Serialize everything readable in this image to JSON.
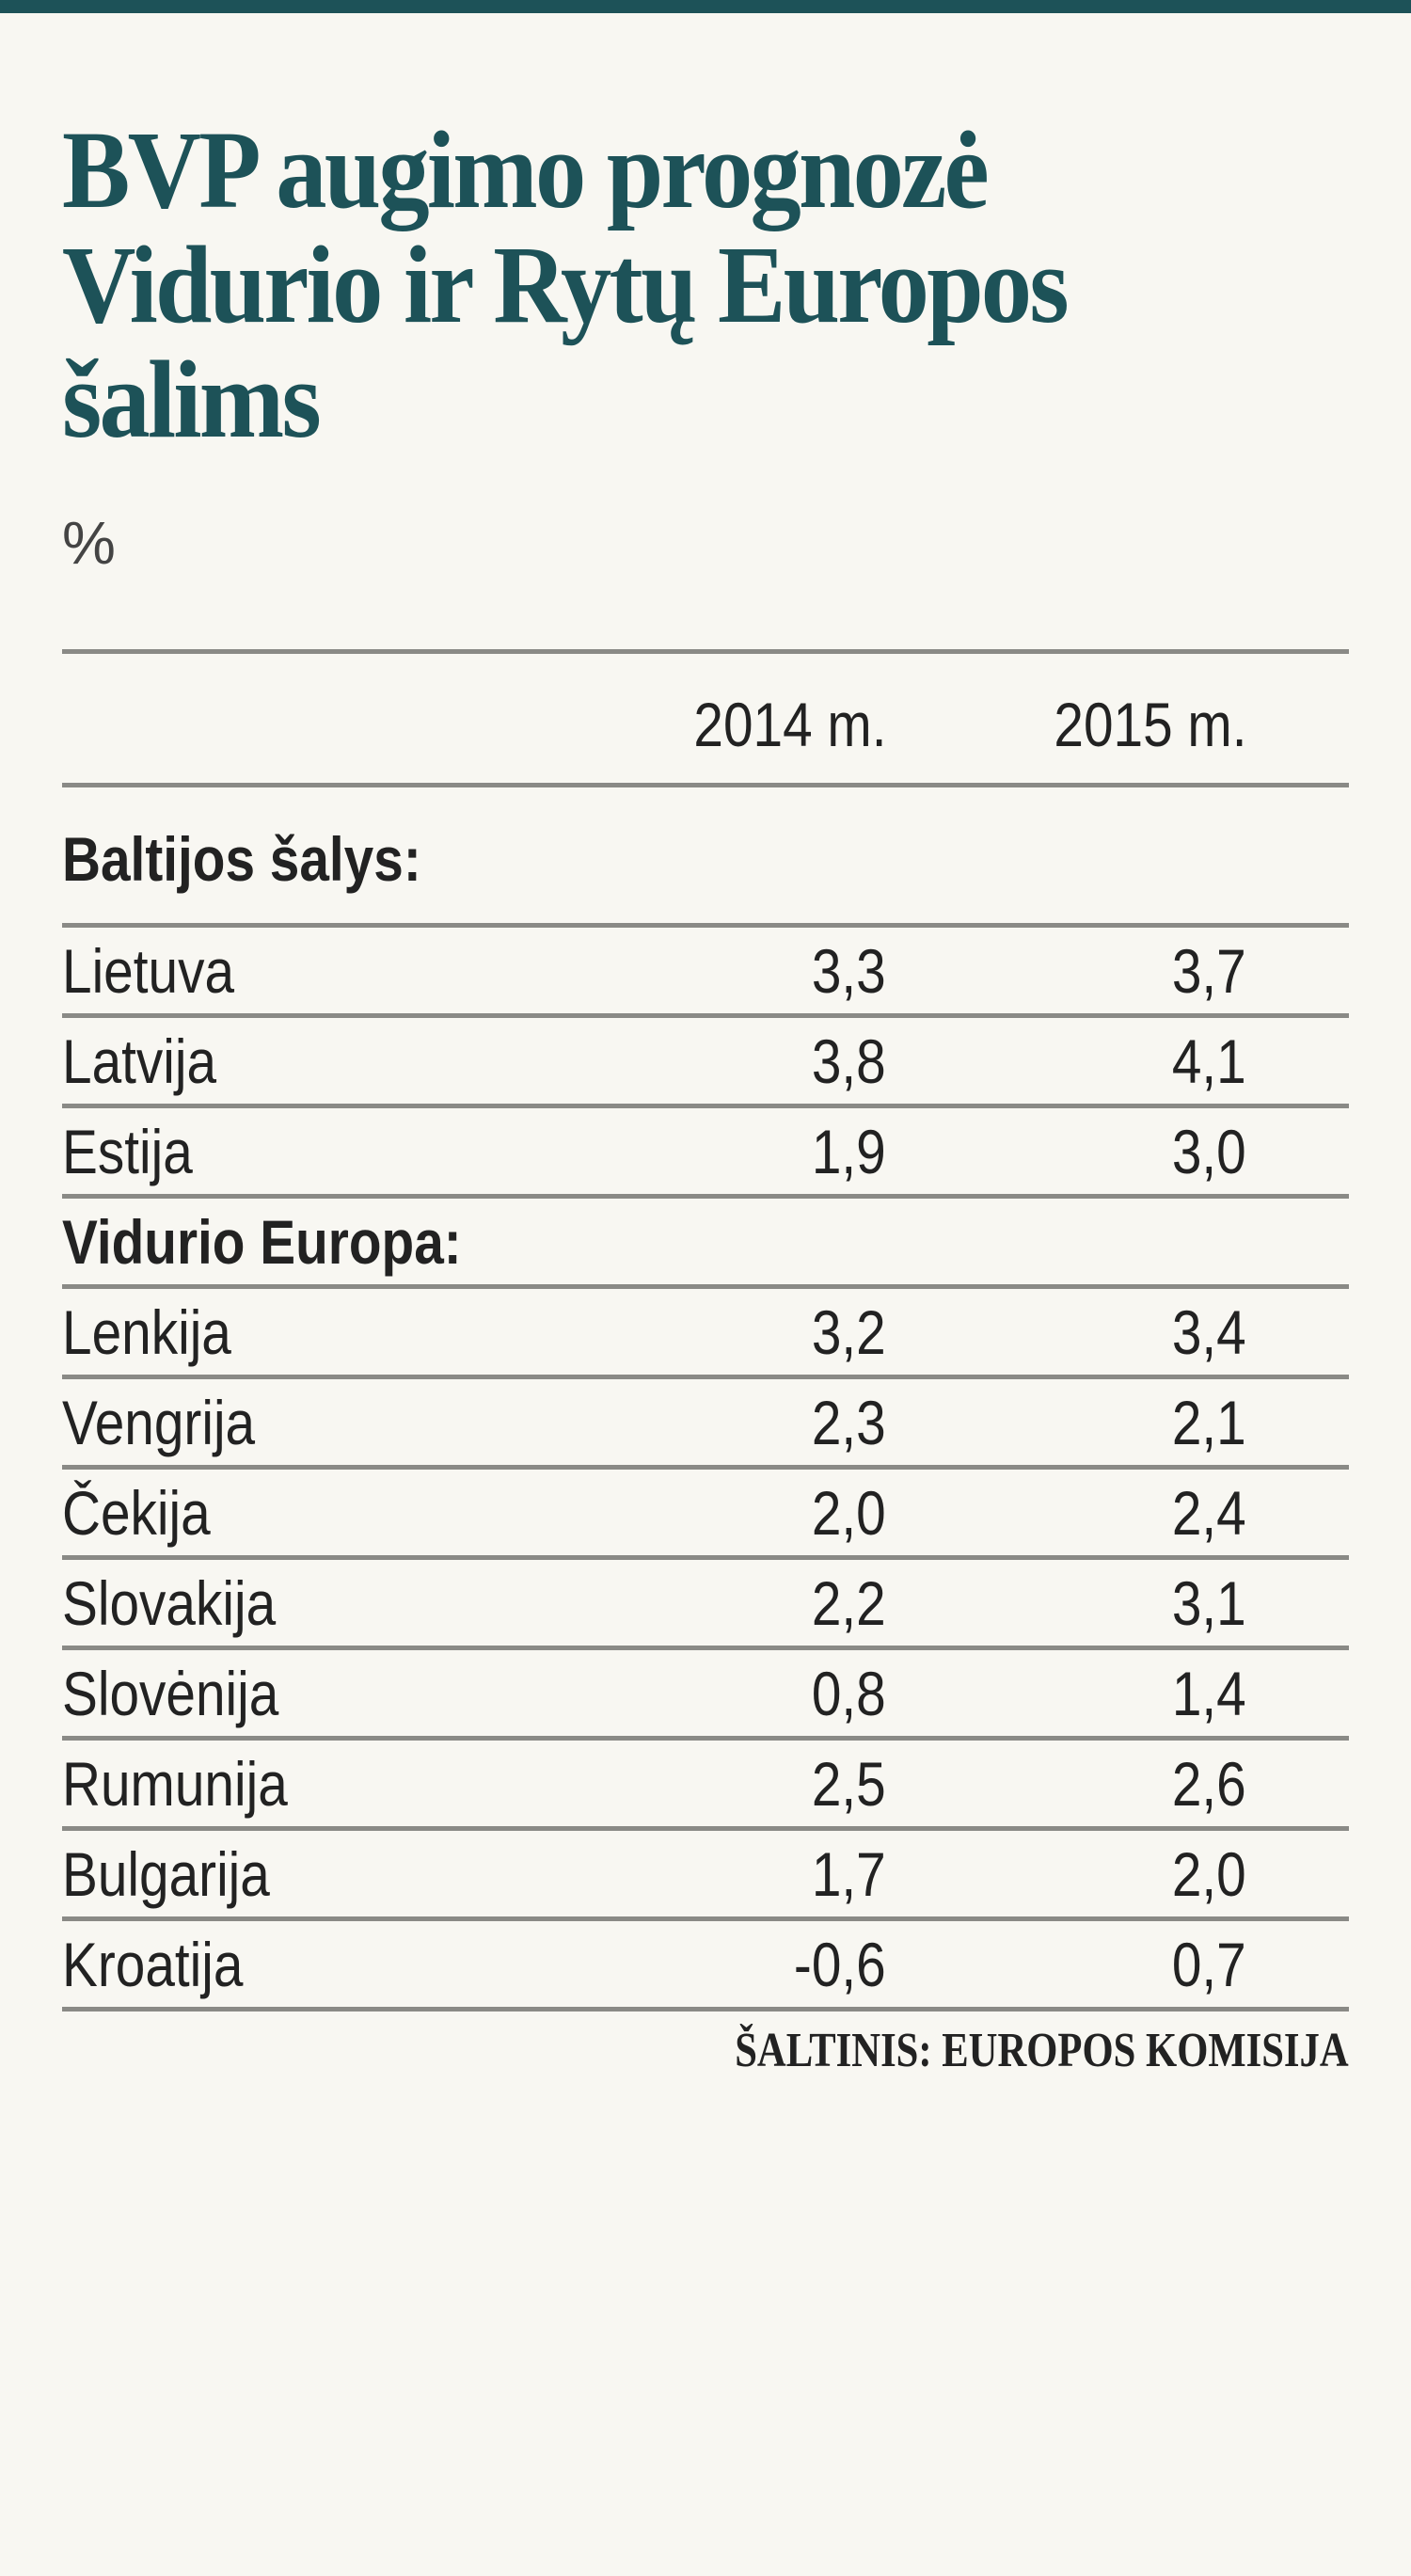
{
  "title_lines": [
    "BVP augimo prognozė",
    "Vidurio ir Rytų Europos",
    "šalims"
  ],
  "unit": "%",
  "columns": [
    "2014 m.",
    "2015 m."
  ],
  "rows": [
    {
      "label": "Baltijos šalys:",
      "group": true
    },
    {
      "label": "Lietuva",
      "v2014": "3,3",
      "v2015": "3,7"
    },
    {
      "label": "Latvija",
      "v2014": "3,8",
      "v2015": "4,1"
    },
    {
      "label": "Estija",
      "v2014": "1,9",
      "v2015": "3,0"
    },
    {
      "label": "Vidurio Europa:",
      "group": true
    },
    {
      "label": "Lenkija",
      "v2014": "3,2",
      "v2015": "3,4"
    },
    {
      "label": "Vengrija",
      "v2014": "2,3",
      "v2015": "2,1"
    },
    {
      "label": "Čekija",
      "v2014": "2,0",
      "v2015": "2,4"
    },
    {
      "label": "Slovakija",
      "v2014": "2,2",
      "v2015": "3,1"
    },
    {
      "label": "Slovėnija",
      "v2014": "0,8",
      "v2015": "1,4"
    },
    {
      "label": "Rumunija",
      "v2014": "2,5",
      "v2015": "2,6"
    },
    {
      "label": "Bulgarija",
      "v2014": "1,7",
      "v2015": "2,0"
    },
    {
      "label": "Kroatija",
      "v2014": "-0,6",
      "v2015": "0,7"
    }
  ],
  "source": "ŠALTINIS: EUROPOS KOMISIJA",
  "colors": {
    "accent": "#1d5258",
    "rule": "#8a8a86",
    "background": "#f8f7f2"
  }
}
